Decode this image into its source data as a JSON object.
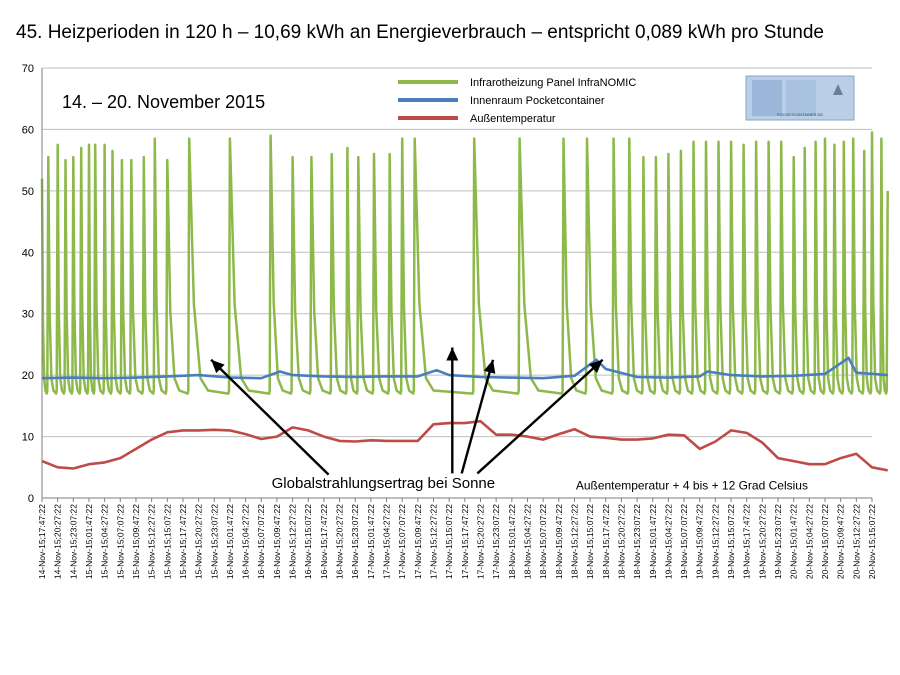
{
  "title": "45. Heizperioden in 120 h – 10,69 kWh an Energieverbrauch – entspricht 0,089 kWh pro Stunde",
  "chart_data": {
    "type": "line",
    "title": "45. Heizperioden in 120 h – 10,69 kWh an Energieverbrauch – entspricht 0,089 kWh pro Stunde",
    "date_range_label": "14. – 20. November 2015",
    "xlabel": "",
    "ylabel": "",
    "ylim": [
      0,
      70
    ],
    "yticks": [
      0,
      10,
      20,
      30,
      40,
      50,
      60,
      70
    ],
    "grid": true,
    "legend_position": "top-center",
    "logo_text": "POCKETCONTAINER.DE",
    "categories": [
      "14-Nov-15;17:47:22",
      "14-Nov-15;20:27:22",
      "14-Nov-15;23:07:22",
      "15-Nov-15;01:47:22",
      "15-Nov-15;04:27:22",
      "15-Nov-15;07:07:22",
      "15-Nov-15;09:47:22",
      "15-Nov-15;12:27:22",
      "15-Nov-15;15:07:22",
      "15-Nov-15;17:47:22",
      "15-Nov-15;20:27:22",
      "15-Nov-15;23:07:22",
      "16-Nov-15;01:47:22",
      "16-Nov-15;04:27:22",
      "16-Nov-15;07:07:22",
      "16-Nov-15;09:47:22",
      "16-Nov-15;12:27:22",
      "16-Nov-15;15:07:22",
      "16-Nov-15;17:47:22",
      "16-Nov-15;20:27:22",
      "16-Nov-15;23:07:22",
      "17-Nov-15;01:47:22",
      "17-Nov-15;04:27:22",
      "17-Nov-15;07:07:22",
      "17-Nov-15;09:47:22",
      "17-Nov-15;12:27:22",
      "17-Nov-15;15:07:22",
      "17-Nov-15;17:47:22",
      "17-Nov-15;20:27:22",
      "17-Nov-15;23:07:22",
      "18-Nov-15;01:47:22",
      "18-Nov-15;04:27:22",
      "18-Nov-15;07:07:22",
      "18-Nov-15;09:47:22",
      "18-Nov-15;12:27:22",
      "18-Nov-15;15:07:22",
      "18-Nov-15;17:47:22",
      "18-Nov-15;20:27:22",
      "18-Nov-15;23:07:22",
      "19-Nov-15;01:47:22",
      "19-Nov-15;04:27:22",
      "19-Nov-15;07:07:22",
      "19-Nov-15;09:47:22",
      "19-Nov-15;12:27:22",
      "19-Nov-15;15:07:22",
      "19-Nov-15;17:47:22",
      "19-Nov-15;20:27:22",
      "19-Nov-15;23:07:22",
      "20-Nov-15;01:47:22",
      "20-Nov-15;04:27:22",
      "20-Nov-15;07:07:22",
      "20-Nov-15;09:47:22",
      "20-Nov-15;12:27:22",
      "20-Nov-15;15:07:22"
    ],
    "series": [
      {
        "name": "Infrarotheizung Panel InfraNOMIC",
        "color": "#8db94a",
        "baseline": 17,
        "x": [
          0,
          0.4,
          1.0,
          1.5,
          2.0,
          2.5,
          3.0,
          3.4,
          4.0,
          4.5,
          5.1,
          5.7,
          6.5,
          7.2,
          8.0,
          9.4,
          12.0,
          14.6,
          16.0,
          17.2,
          18.5,
          19.5,
          20.2,
          21.2,
          22.2,
          23.0,
          23.8,
          27.6,
          30.5,
          33.3,
          34.8,
          36.5,
          37.5,
          38.4,
          39.2,
          40.0,
          40.8,
          41.6,
          42.4,
          43.2,
          44.0,
          44.8,
          45.6,
          46.4,
          47.2,
          48.0,
          48.7,
          49.4,
          50.0,
          50.6,
          51.2,
          51.8,
          52.5,
          53.0,
          53.6,
          54.0
        ],
        "y": [
          52,
          55.5,
          57.5,
          55,
          55.5,
          57,
          57.5,
          57.5,
          57.5,
          56.5,
          55,
          55,
          55.5,
          58.5,
          55,
          58.5,
          58.5,
          59,
          55.5,
          55.5,
          56,
          57,
          55.5,
          56,
          56,
          58.5,
          58.5,
          58.5,
          58.5,
          58.5,
          58.5,
          58.5,
          58.5,
          55.5,
          55.5,
          56,
          56.5,
          58,
          58,
          58,
          58,
          57.5,
          58,
          58,
          58,
          55.5,
          57,
          58,
          58.5,
          57.5,
          58,
          58.5,
          56.5,
          59.5,
          58.5,
          50
        ]
      },
      {
        "name": "Innenraum Pocketcontainer",
        "color": "#4a7ebb",
        "x": [
          0,
          2,
          4,
          6,
          8,
          10,
          12,
          14,
          15.2,
          16,
          18,
          20,
          22,
          24,
          25.2,
          26,
          28,
          30,
          32,
          34,
          35.4,
          36,
          38,
          40,
          42,
          42.5,
          44,
          46,
          48,
          50,
          51.5,
          52,
          54
        ],
        "y": [
          19.5,
          19.6,
          19.5,
          19.6,
          19.8,
          20.0,
          19.6,
          19.5,
          20.6,
          20.0,
          19.8,
          19.7,
          19.8,
          19.8,
          20.8,
          20.0,
          19.7,
          19.6,
          19.5,
          19.9,
          22.5,
          21.0,
          19.7,
          19.6,
          19.8,
          20.6,
          20.0,
          19.8,
          19.9,
          20.2,
          22.8,
          20.4,
          20.0
        ]
      },
      {
        "name": "Außentemperatur",
        "color": "#be4b48",
        "x": [
          0,
          1,
          2,
          3,
          4,
          5,
          6,
          7,
          8,
          9,
          10,
          11,
          12,
          13,
          14,
          15,
          16,
          17,
          18,
          19,
          20,
          21,
          22,
          23,
          24,
          25,
          26,
          27,
          28,
          29,
          30,
          31,
          32,
          33,
          34,
          35,
          36,
          37,
          38,
          39,
          40,
          41,
          42,
          43,
          44,
          45,
          46,
          47,
          48,
          49,
          50,
          51,
          52,
          53,
          54
        ],
        "y": [
          6.0,
          5.0,
          4.8,
          5.5,
          5.8,
          6.5,
          8.0,
          9.5,
          10.7,
          11.0,
          11.0,
          11.1,
          11.0,
          10.4,
          9.6,
          10.0,
          11.5,
          11.0,
          10.0,
          9.3,
          9.2,
          9.4,
          9.3,
          9.3,
          9.3,
          12.0,
          12.2,
          12.2,
          12.5,
          10.3,
          10.3,
          10.0,
          9.5,
          10.4,
          11.2,
          10.0,
          9.8,
          9.5,
          9.5,
          9.7,
          10.3,
          10.2,
          8.0,
          9.2,
          11.0,
          10.6,
          9.0,
          6.5,
          6.0,
          5.5,
          5.5,
          6.5,
          7.2,
          5.0,
          4.5
        ]
      }
    ],
    "annotations": [
      {
        "text": "Globalstrahlungsertrag bei Sonne",
        "x": 21.8,
        "y": 1.6
      },
      {
        "text": "Außentemperatur  + 4 bis + 12 Grad Celsius",
        "x": 41.5,
        "y": 1.4
      }
    ],
    "arrows": [
      {
        "from": [
          18.3,
          3.8
        ],
        "to": [
          10.8,
          22.5
        ]
      },
      {
        "from": [
          26.2,
          4.0
        ],
        "to": [
          26.2,
          24.5
        ]
      },
      {
        "from": [
          26.8,
          4.0
        ],
        "to": [
          28.8,
          22.5
        ]
      },
      {
        "from": [
          27.8,
          4.0
        ],
        "to": [
          35.8,
          22.5
        ]
      }
    ]
  }
}
